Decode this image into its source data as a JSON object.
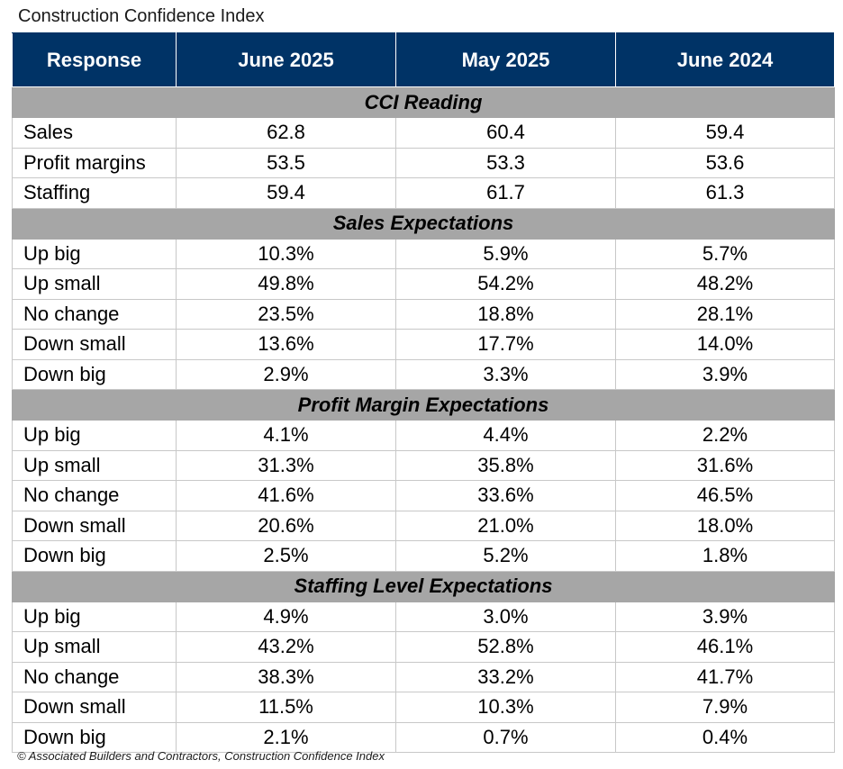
{
  "title": "Construction Confidence Index",
  "source": "© Associated Builders and Contractors, Construction Confidence Index",
  "chart_data": {
    "type": "table",
    "title": "Construction Confidence Index",
    "columns": [
      "Response",
      "June 2025",
      "May 2025",
      "June 2024"
    ],
    "sections": [
      {
        "name": "CCI Reading",
        "rows": [
          {
            "label": "Sales",
            "values": [
              "62.8",
              "60.4",
              "59.4"
            ]
          },
          {
            "label": "Profit margins",
            "values": [
              "53.5",
              "53.3",
              "53.6"
            ]
          },
          {
            "label": "Staffing",
            "values": [
              "59.4",
              "61.7",
              "61.3"
            ]
          }
        ]
      },
      {
        "name": "Sales Expectations",
        "rows": [
          {
            "label": "Up big",
            "values": [
              "10.3%",
              "5.9%",
              "5.7%"
            ]
          },
          {
            "label": "Up small",
            "values": [
              "49.8%",
              "54.2%",
              "48.2%"
            ]
          },
          {
            "label": "No change",
            "values": [
              "23.5%",
              "18.8%",
              "28.1%"
            ]
          },
          {
            "label": "Down small",
            "values": [
              "13.6%",
              "17.7%",
              "14.0%"
            ]
          },
          {
            "label": "Down big",
            "values": [
              "2.9%",
              "3.3%",
              "3.9%"
            ]
          }
        ]
      },
      {
        "name": "Profit Margin Expectations",
        "rows": [
          {
            "label": "Up big",
            "values": [
              "4.1%",
              "4.4%",
              "2.2%"
            ]
          },
          {
            "label": "Up small",
            "values": [
              "31.3%",
              "35.8%",
              "31.6%"
            ]
          },
          {
            "label": "No change",
            "values": [
              "41.6%",
              "33.6%",
              "46.5%"
            ]
          },
          {
            "label": "Down small",
            "values": [
              "20.6%",
              "21.0%",
              "18.0%"
            ]
          },
          {
            "label": "Down big",
            "values": [
              "2.5%",
              "5.2%",
              "1.8%"
            ]
          }
        ]
      },
      {
        "name": "Staffing Level Expectations",
        "rows": [
          {
            "label": "Up big",
            "values": [
              "4.9%",
              "3.0%",
              "3.9%"
            ]
          },
          {
            "label": "Up small",
            "values": [
              "43.2%",
              "52.8%",
              "46.1%"
            ]
          },
          {
            "label": "No change",
            "values": [
              "38.3%",
              "33.2%",
              "41.7%"
            ]
          },
          {
            "label": "Down small",
            "values": [
              "11.5%",
              "10.3%",
              "7.9%"
            ]
          },
          {
            "label": "Down big",
            "values": [
              "2.1%",
              "0.7%",
              "0.4%"
            ]
          }
        ]
      }
    ]
  },
  "colors": {
    "header_bg": "#003366",
    "header_text": "#ffffff",
    "section_bg": "#a6a6a6",
    "grid_line": "#c8c8c8"
  }
}
